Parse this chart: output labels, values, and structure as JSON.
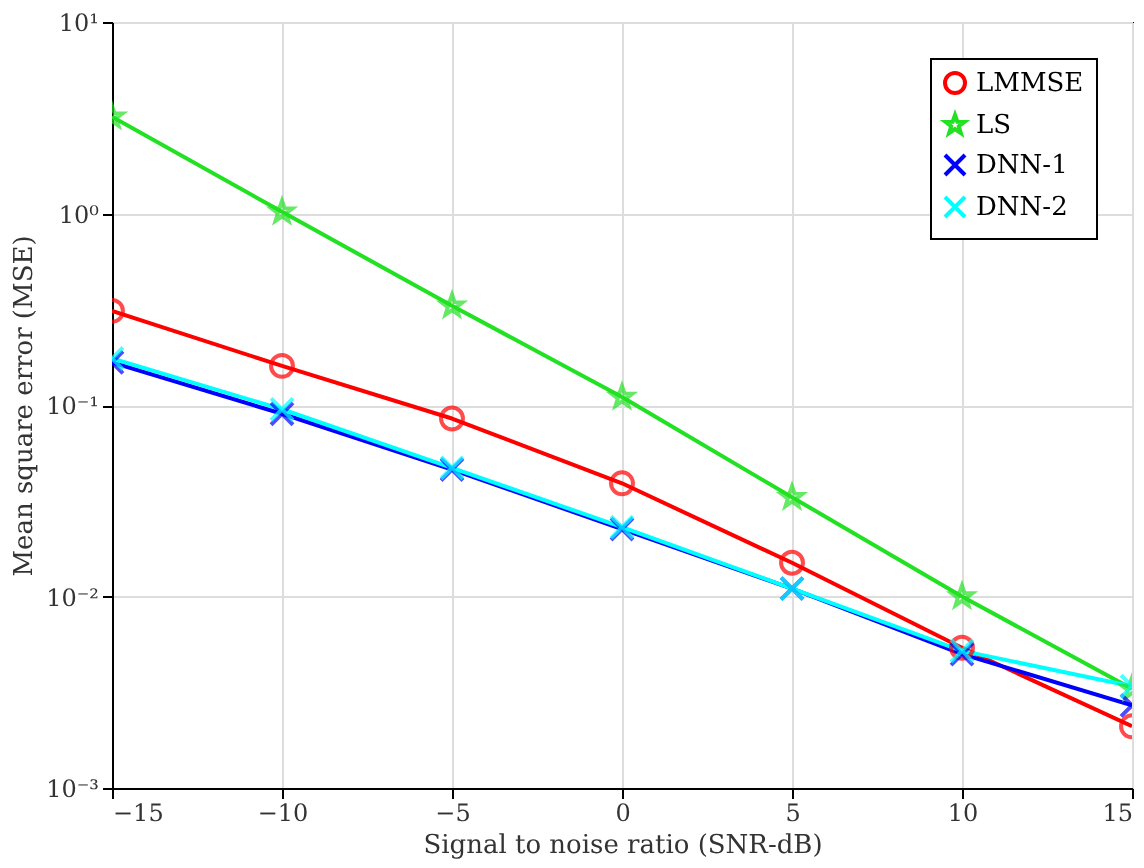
{
  "chart_data": {
    "type": "line",
    "xlabel": "Signal to noise ratio (SNR-dB)",
    "ylabel": "Mean square error (MSE)",
    "x": [
      -15,
      -10,
      -5,
      0,
      5,
      10,
      15
    ],
    "series": [
      {
        "name": "LMMSE",
        "color": "#ff0000",
        "marker": "circle",
        "values": [
          0.31,
          0.16,
          0.085,
          0.039,
          0.015,
          0.0054,
          0.0021
        ]
      },
      {
        "name": "LS",
        "color": "#22e022",
        "marker": "star",
        "values": [
          3.2,
          1.02,
          0.33,
          0.11,
          0.033,
          0.01,
          0.0033
        ]
      },
      {
        "name": "DNN-1",
        "color": "#0000ff",
        "marker": "cross",
        "values": [
          0.167,
          0.09,
          0.046,
          0.0225,
          0.011,
          0.005,
          0.0027
        ]
      },
      {
        "name": "DNN-2",
        "color": "#00ffff",
        "marker": "cross",
        "values": [
          0.175,
          0.095,
          0.047,
          0.023,
          0.011,
          0.0052,
          0.0034
        ]
      }
    ],
    "log": true,
    "xlim": [
      -15,
      15
    ],
    "xticks": [
      -15,
      -10,
      -5,
      0,
      5,
      10,
      15
    ],
    "ylim": [
      0.001,
      10
    ],
    "yticks": [
      {
        "value": 0.001,
        "label": "10⁻³"
      },
      {
        "value": 0.01,
        "label": "10⁻²"
      },
      {
        "value": 0.1,
        "label": "10⁻¹"
      },
      {
        "value": 1,
        "label": "10⁰"
      },
      {
        "value": 10,
        "label": "10¹"
      }
    ],
    "grid": true,
    "legend": "top right",
    "line_style": "solid"
  }
}
